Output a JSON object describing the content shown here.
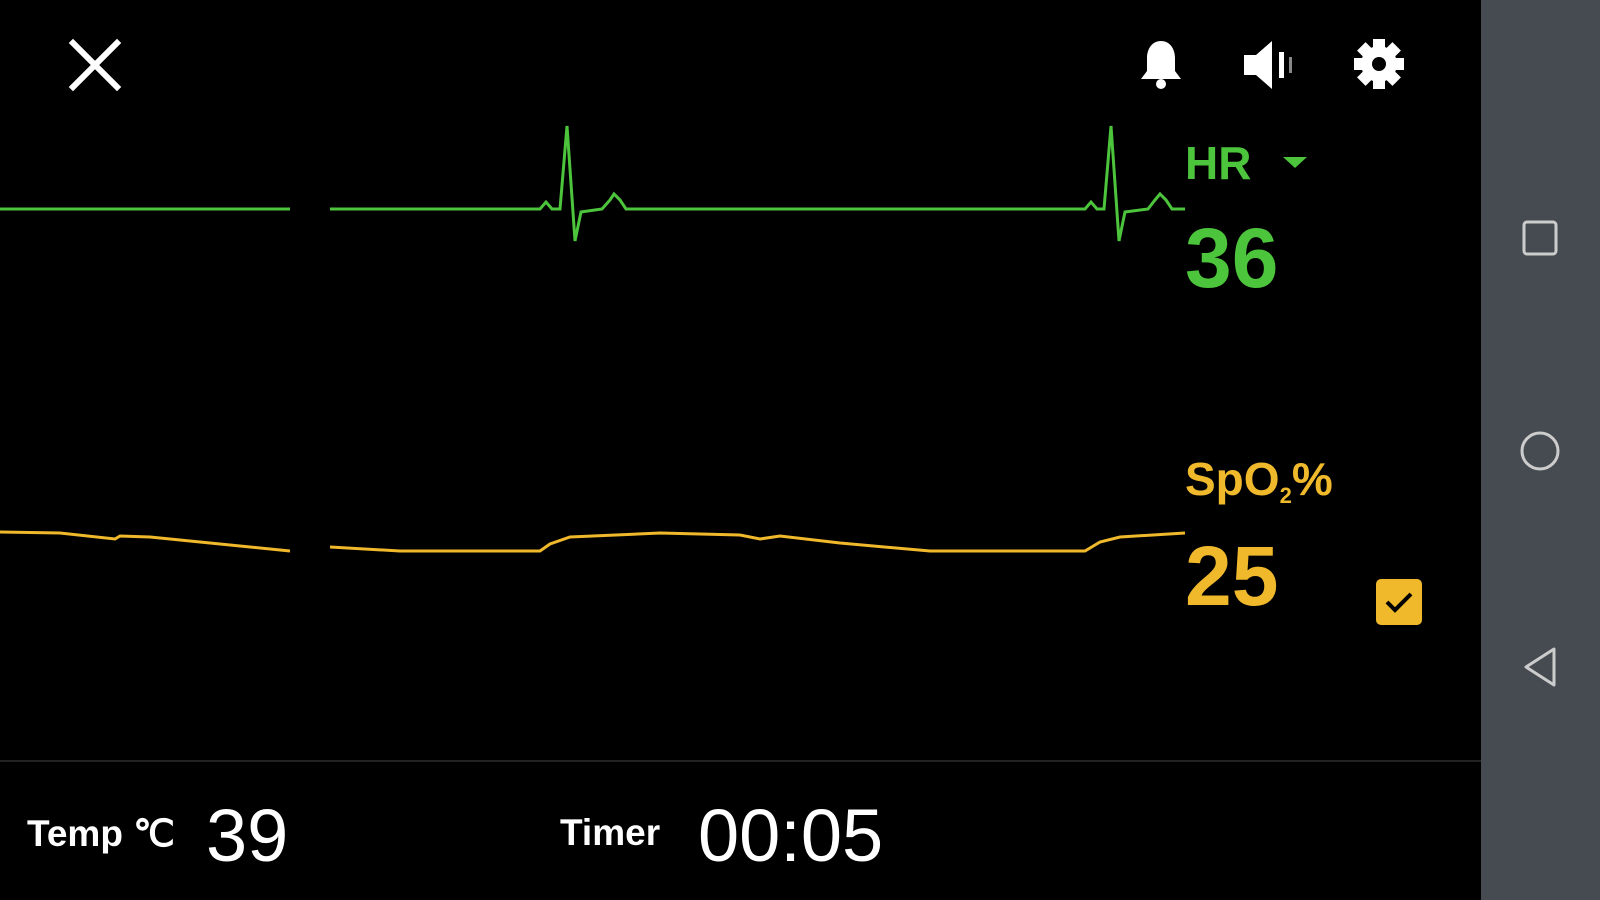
{
  "toolbar": {
    "icons": [
      "close-icon",
      "bell-icon",
      "speaker-volume-icon",
      "gear-icon"
    ]
  },
  "vitals": {
    "hr": {
      "label": "HR",
      "value": "36",
      "color": "#4cc43c"
    },
    "spo2": {
      "label_main": "SpO",
      "label_sub": "2",
      "label_suffix": "%",
      "value": "25",
      "color": "#f0b92c",
      "checked": true
    }
  },
  "footer": {
    "temp_label": "Temp ℃",
    "temp_value": "39",
    "timer_label": "Timer",
    "timer_value": "00:05"
  },
  "navbar": {
    "icons": [
      "recents-square-icon",
      "home-circle-icon",
      "back-triangle-icon"
    ],
    "color": "#454b51"
  }
}
